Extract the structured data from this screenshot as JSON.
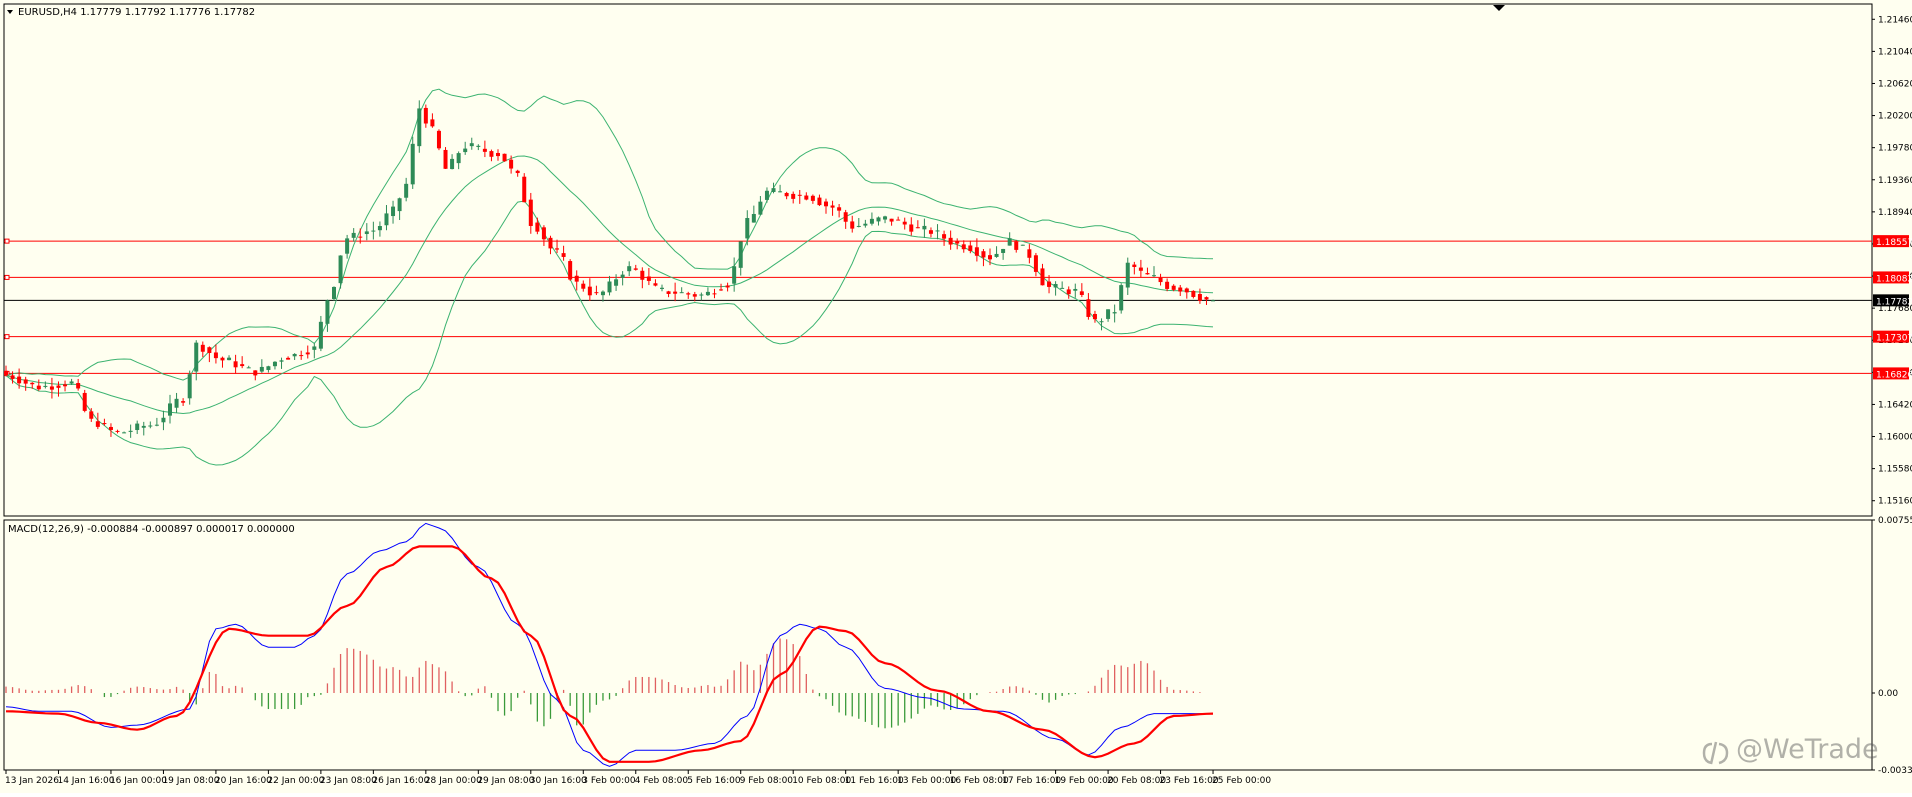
{
  "colors": {
    "background": "#FFFFF0",
    "bull_candle": "#2E8B57",
    "bear_candle": "#FF0000",
    "bands": "#3CB371",
    "level_line": "#FF0000",
    "price_line": "#000000",
    "macd_line": "#0000FF",
    "signal_line": "#FF0000",
    "hist_positive": "#E06060",
    "hist_negative": "#3A9A3A",
    "axis_text": "#000000"
  },
  "header": {
    "symbol_info": "EURUSD,H4  1.17779 1.17792 1.17776 1.17782",
    "macd_info": "MACD(12,26,9) -0.000884 -0.000897 0.000017 0.000000"
  },
  "watermark": {
    "icon": "wetrade-logo-icon",
    "text": "@WeTrade"
  },
  "price_axis": {
    "ticks": [
      "1.21460",
      "1.21040",
      "1.20620",
      "1.20200",
      "1.19780",
      "1.19360",
      "1.18940",
      "1.18520",
      "1.18100",
      "1.17680",
      "1.17260",
      "1.16840",
      "1.16420",
      "1.16000",
      "1.15580",
      "1.15160"
    ],
    "ylim": [
      1.1496,
      1.2166
    ]
  },
  "macd_axis": {
    "ticks": [
      "0.00755",
      "0.00",
      "-0.00336"
    ],
    "ylim": [
      -0.00336,
      0.00755
    ]
  },
  "time_axis": {
    "labels": [
      "13 Jan 2026",
      "14 Jan 16:00",
      "16 Jan 00:00",
      "19 Jan 08:00",
      "20 Jan 16:00",
      "22 Jan 00:00",
      "23 Jan 08:00",
      "26 Jan 16:00",
      "28 Jan 00:00",
      "29 Jan 08:00",
      "30 Jan 16:00",
      "3 Feb 00:00",
      "4 Feb 08:00",
      "5 Feb 16:00",
      "9 Feb 08:00",
      "10 Feb 08:00",
      "11 Feb 16:00",
      "13 Feb 00:00",
      "16 Feb 08:00",
      "17 Feb 16:00",
      "19 Feb 00:00",
      "20 Feb 08:00",
      "23 Feb 16:00",
      "25 Feb 00:00"
    ],
    "label_bar_index": [
      0,
      8,
      16,
      24,
      32,
      40,
      48,
      56,
      64,
      72,
      80,
      88,
      96,
      104,
      112,
      120,
      128,
      136,
      144,
      152,
      160,
      168,
      176,
      184
    ]
  },
  "chart_data": [
    {
      "type": "candlestick",
      "title": "EURUSD,H4",
      "last": {
        "open": 1.17779,
        "high": 1.17792,
        "low": 1.17776,
        "close": 1.17782
      },
      "current_price": {
        "label": "1.17782",
        "value": 1.17782
      },
      "levels": [
        {
          "label": "1.18557",
          "value": 1.18557
        },
        {
          "label": "1.18082",
          "value": 1.18082
        },
        {
          "label": "1.17307",
          "value": 1.17307
        },
        {
          "label": "1.16826",
          "value": 1.16826
        }
      ],
      "bollinger_bands": true,
      "anchors": [
        [
          0,
          1.168
        ],
        [
          5,
          1.1665
        ],
        [
          10,
          1.167
        ],
        [
          13,
          1.162
        ],
        [
          17,
          1.1605
        ],
        [
          22,
          1.1615
        ],
        [
          27,
          1.165
        ],
        [
          29,
          1.172
        ],
        [
          33,
          1.17
        ],
        [
          38,
          1.1685
        ],
        [
          43,
          1.1705
        ],
        [
          47,
          1.1715
        ],
        [
          49,
          1.178
        ],
        [
          52,
          1.186
        ],
        [
          56,
          1.187
        ],
        [
          59,
          1.1895
        ],
        [
          61,
          1.193
        ],
        [
          63,
          1.203
        ],
        [
          65,
          1.2
        ],
        [
          67,
          1.195
        ],
        [
          70,
          1.198
        ],
        [
          75,
          1.197
        ],
        [
          78,
          1.194
        ],
        [
          80,
          1.188
        ],
        [
          84,
          1.184
        ],
        [
          87,
          1.18
        ],
        [
          90,
          1.1785
        ],
        [
          95,
          1.182
        ],
        [
          100,
          1.179
        ],
        [
          106,
          1.1785
        ],
        [
          110,
          1.18
        ],
        [
          113,
          1.188
        ],
        [
          116,
          1.192
        ],
        [
          122,
          1.1915
        ],
        [
          126,
          1.19
        ],
        [
          129,
          1.1875
        ],
        [
          134,
          1.1885
        ],
        [
          140,
          1.187
        ],
        [
          146,
          1.185
        ],
        [
          150,
          1.1835
        ],
        [
          153,
          1.1855
        ],
        [
          155,
          1.1845
        ],
        [
          159,
          1.1795
        ],
        [
          163,
          1.179
        ],
        [
          166,
          1.175
        ],
        [
          169,
          1.1765
        ],
        [
          171,
          1.1825
        ],
        [
          174,
          1.181
        ],
        [
          178,
          1.1795
        ],
        [
          184,
          1.1778
        ]
      ]
    },
    {
      "type": "macd",
      "title": "MACD(12,26,9)",
      "values": {
        "macd": -0.000884,
        "signal": -0.000897,
        "histogram": 1.7e-05,
        "extra": 0.0
      },
      "macd_anchors": [
        [
          0,
          -0.0006
        ],
        [
          5,
          -0.0008
        ],
        [
          10,
          -0.0008
        ],
        [
          16,
          -0.0015
        ],
        [
          20,
          -0.0014
        ],
        [
          28,
          -0.0007
        ],
        [
          32,
          0.0028
        ],
        [
          35,
          0.003
        ],
        [
          40,
          0.002
        ],
        [
          44,
          0.002
        ],
        [
          47,
          0.0025
        ],
        [
          52,
          0.0052
        ],
        [
          57,
          0.0062
        ],
        [
          61,
          0.0066
        ],
        [
          64,
          0.0074
        ],
        [
          66,
          0.0072
        ],
        [
          72,
          0.0055
        ],
        [
          78,
          0.003
        ],
        [
          84,
          -0.0003
        ],
        [
          88,
          -0.0025
        ],
        [
          92,
          -0.0032
        ],
        [
          96,
          -0.0025
        ],
        [
          102,
          -0.0025
        ],
        [
          108,
          -0.0022
        ],
        [
          113,
          -0.001
        ],
        [
          118,
          0.0025
        ],
        [
          121,
          0.003
        ],
        [
          124,
          0.0028
        ],
        [
          128,
          0.002
        ],
        [
          134,
          0.0002
        ],
        [
          140,
          -0.0002
        ],
        [
          146,
          -0.0007
        ],
        [
          152,
          -0.0008
        ],
        [
          160,
          -0.002
        ],
        [
          165,
          -0.0027
        ],
        [
          170,
          -0.0015
        ],
        [
          175,
          -0.0009
        ],
        [
          184,
          -0.0009
        ]
      ],
      "signal_anchors": [
        [
          0,
          -0.0008
        ],
        [
          8,
          -0.0009
        ],
        [
          14,
          -0.0013
        ],
        [
          20,
          -0.0016
        ],
        [
          26,
          -0.001
        ],
        [
          34,
          0.0028
        ],
        [
          40,
          0.0025
        ],
        [
          46,
          0.0025
        ],
        [
          52,
          0.0038
        ],
        [
          58,
          0.0055
        ],
        [
          63,
          0.0064
        ],
        [
          68,
          0.0064
        ],
        [
          74,
          0.005
        ],
        [
          80,
          0.0025
        ],
        [
          86,
          -0.001
        ],
        [
          92,
          -0.003
        ],
        [
          98,
          -0.003
        ],
        [
          106,
          -0.0025
        ],
        [
          112,
          -0.0021
        ],
        [
          118,
          0.0008
        ],
        [
          124,
          0.0029
        ],
        [
          128,
          0.0027
        ],
        [
          134,
          0.0013
        ],
        [
          142,
          0.0001
        ],
        [
          150,
          -0.0008
        ],
        [
          158,
          -0.0016
        ],
        [
          166,
          -0.0028
        ],
        [
          172,
          -0.0022
        ],
        [
          178,
          -0.001
        ],
        [
          184,
          -0.0009
        ]
      ],
      "ylim": [
        -0.00336,
        0.00755
      ]
    }
  ]
}
